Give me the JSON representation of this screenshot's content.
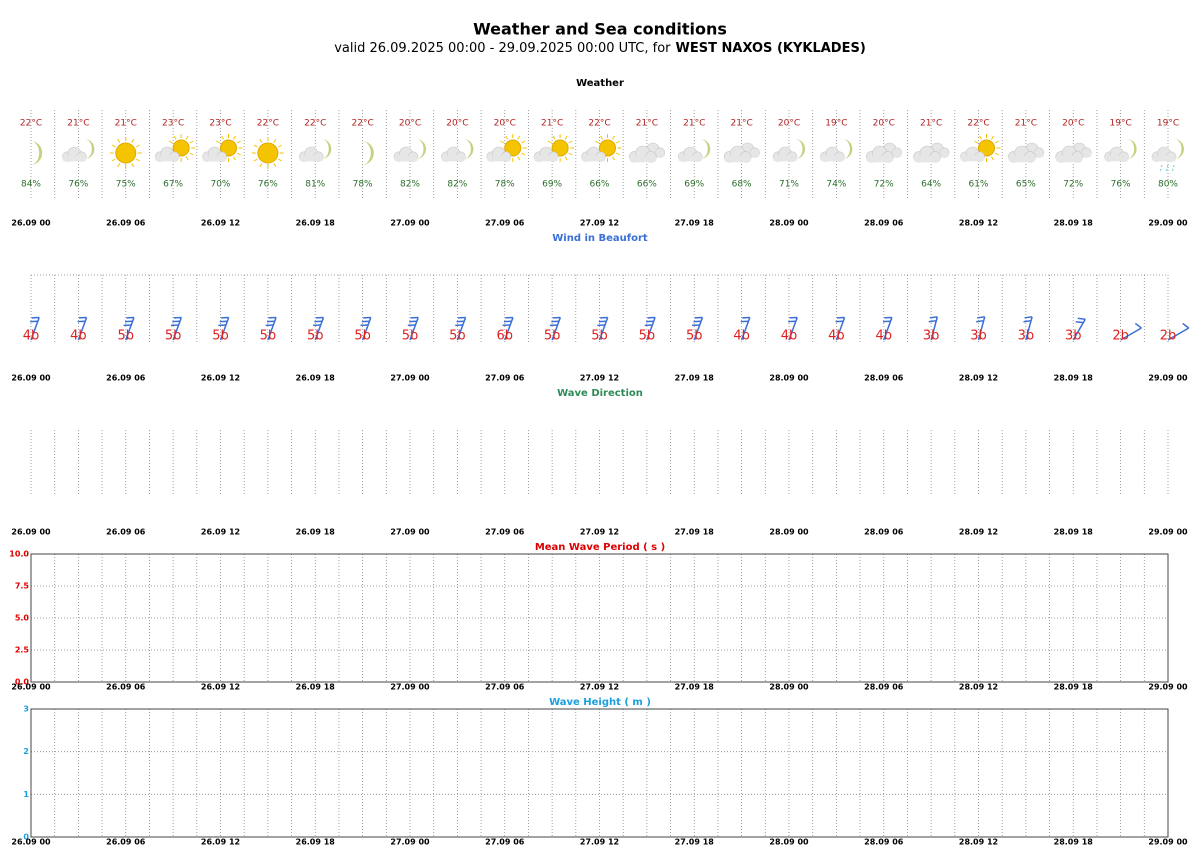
{
  "title": "Weather and Sea conditions",
  "subtitle": "valid 26.09.2025 00:00 - 29.09.2025 00:00 UTC, for",
  "location": "WEST NAXOS (KYKLADES)",
  "xtick_labels": [
    "26.09 00",
    "26.09 06",
    "26.09 12",
    "26.09 18",
    "27.09 00",
    "27.09 06",
    "27.09 12",
    "27.09 18",
    "28.09 00",
    "28.09 06",
    "28.09 12",
    "28.09 18",
    "29.09 00"
  ],
  "chart_data": [
    {
      "type": "weather",
      "title": "Weather",
      "temperature": {
        "color": "#b22222",
        "values": [
          22,
          21,
          21,
          23,
          23,
          22,
          22,
          22,
          20,
          20,
          20,
          21,
          22,
          21,
          21,
          21,
          20,
          19,
          20,
          21,
          22,
          21,
          20,
          19,
          19
        ],
        "value_labels": [
          "22°C",
          "21°C",
          "21°C",
          "23°C",
          "23°C",
          "22°C",
          "22°C",
          "22°C",
          "20°C",
          "20°C",
          "20°C",
          "21°C",
          "22°C",
          "21°C",
          "21°C",
          "21°C",
          "20°C",
          "19°C",
          "20°C",
          "21°C",
          "22°C",
          "21°C",
          "20°C",
          "19°C",
          "19°C"
        ]
      },
      "humidity": {
        "color": "#2a6e2a",
        "values": [
          84,
          76,
          75,
          67,
          70,
          76,
          81,
          78,
          82,
          82,
          78,
          69,
          66,
          66,
          69,
          68,
          71,
          74,
          72,
          64,
          61,
          65,
          72,
          76,
          80
        ],
        "value_labels": [
          "84%",
          "76%",
          "75%",
          "67%",
          "70%",
          "76%",
          "81%",
          "78%",
          "82%",
          "82%",
          "78%",
          "69%",
          "66%",
          "66%",
          "69%",
          "68%",
          "71%",
          "74%",
          "72%",
          "64%",
          "61%",
          "65%",
          "72%",
          "76%",
          "80%"
        ]
      },
      "icons": [
        "moon",
        "cloud-moon",
        "sun",
        "cloud-sun",
        "cloud-sun",
        "sun",
        "cloud-moon",
        "moon",
        "cloud-moon",
        "cloud-moon",
        "cloud-sun",
        "cloud-sun",
        "cloud-sun",
        "cloudy",
        "cloud-moon",
        "cloudy",
        "cloud-moon",
        "cloud-moon",
        "cloudy",
        "cloudy",
        "cloud-sun",
        "cloudy",
        "cloudy",
        "cloud-moon",
        "cloud-moon-rain"
      ]
    },
    {
      "type": "wind",
      "title": "Wind in Beaufort",
      "color": "#3a6fd8",
      "label_color": "#e02020",
      "values": [
        4,
        4,
        5,
        5,
        5,
        5,
        5,
        5,
        5,
        5,
        6,
        5,
        5,
        5,
        5,
        4,
        4,
        4,
        4,
        3,
        3,
        3,
        3,
        2,
        2
      ],
      "value_labels": [
        "4b",
        "4b",
        "5b",
        "5b",
        "5b",
        "5b",
        "5b",
        "5b",
        "5b",
        "5b",
        "6b",
        "5b",
        "5b",
        "5b",
        "5b",
        "4b",
        "4b",
        "4b",
        "4b",
        "3b",
        "3b",
        "3b",
        "3b",
        "2b",
        "2b"
      ],
      "directions": [
        20,
        20,
        20,
        20,
        20,
        20,
        20,
        20,
        20,
        20,
        20,
        20,
        20,
        20,
        20,
        20,
        20,
        20,
        20,
        15,
        15,
        15,
        30,
        60,
        60
      ]
    },
    {
      "type": "empty",
      "title": "Wave Direction",
      "color": "#2e8b57"
    },
    {
      "type": "line",
      "title": "Mean Wave Period ( s )",
      "color": "#dd0000",
      "ylim": [
        0,
        10
      ],
      "yticks": [
        {
          "value": 0,
          "label": "0.0"
        },
        {
          "value": 2.5,
          "label": "2.5"
        },
        {
          "value": 5,
          "label": "5.0"
        },
        {
          "value": 7.5,
          "label": "7.5"
        },
        {
          "value": 10,
          "label": "10.0"
        }
      ],
      "grid": true
    },
    {
      "type": "line",
      "title": "Wave Height ( m )",
      "color": "#19a0e0",
      "ylim": [
        0,
        3
      ],
      "yticks": [
        0,
        1,
        2,
        3
      ],
      "grid": true
    }
  ]
}
